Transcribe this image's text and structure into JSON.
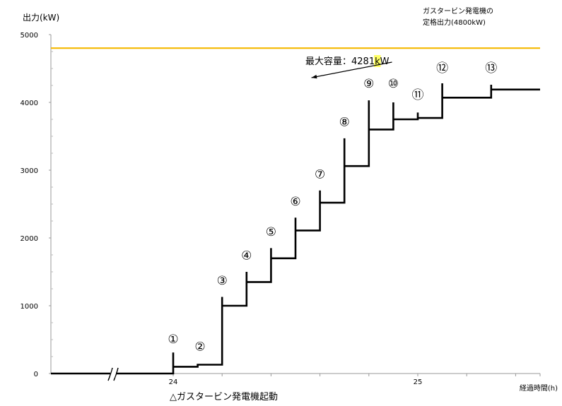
{
  "chart_data": {
    "type": "line",
    "ylabel": "出力(kW)",
    "xlabel": "経過時間(h)",
    "ylim": [
      0,
      5000
    ],
    "yticks": [
      "0",
      "1000",
      "2000",
      "3000",
      "4000",
      "5000"
    ],
    "xticks": [
      {
        "label": "24",
        "value": 24.0
      },
      {
        "label": "25",
        "value": 25.0
      }
    ],
    "axis_break": true,
    "reference_line": {
      "value": 4800,
      "color": "#f5b800",
      "label_line1": "ガスタービン発電機の",
      "label_line2": "定格出力(4800kW)"
    },
    "annotation": {
      "prefix": "最大容量：4281",
      "highlight": "k",
      "suffix": "W",
      "highlight_color": "#ffff66",
      "target_x": 25.2,
      "target_y": 4281
    },
    "start_label": "△ガスタービン発電機起動",
    "series": [
      {
        "color": "#000000",
        "points": [
          [
            22.99,
            0
          ],
          [
            24.0,
            0
          ],
          [
            24.0,
            310
          ],
          [
            24.0,
            100
          ],
          [
            24.2,
            100
          ],
          [
            24.2,
            130
          ],
          [
            24.4,
            130
          ],
          [
            24.4,
            1130
          ],
          [
            24.4,
            1000
          ],
          [
            24.6,
            1000
          ],
          [
            24.6,
            1500
          ],
          [
            24.6,
            1350
          ],
          [
            24.8,
            1350
          ],
          [
            24.8,
            1850
          ],
          [
            24.8,
            1700
          ],
          [
            25.0,
            1700
          ],
          [
            25.0,
            2300
          ],
          [
            25.0,
            2110
          ],
          [
            25.2,
            2110
          ],
          [
            25.2,
            2700
          ],
          [
            25.2,
            2520
          ],
          [
            25.4,
            2520
          ],
          [
            25.4,
            3470
          ],
          [
            25.4,
            3060
          ],
          [
            25.6,
            3060
          ],
          [
            25.6,
            4030
          ],
          [
            25.6,
            3600
          ],
          [
            25.8,
            3600
          ],
          [
            25.8,
            4000
          ],
          [
            25.8,
            3750
          ],
          [
            26.0,
            3750
          ],
          [
            26.0,
            3850
          ],
          [
            26.0,
            3770
          ],
          [
            26.2,
            3770
          ],
          [
            26.2,
            4281
          ],
          [
            26.2,
            4070
          ],
          [
            26.6,
            4070
          ],
          [
            26.6,
            4260
          ],
          [
            26.6,
            4190
          ],
          [
            27.0,
            4190
          ]
        ]
      }
    ],
    "step_labels": [
      {
        "text": "①",
        "x": 24.0,
        "y": 450
      },
      {
        "text": "②",
        "x": 24.22,
        "y": 340
      },
      {
        "text": "③",
        "x": 24.4,
        "y": 1310
      },
      {
        "text": "④",
        "x": 24.6,
        "y": 1680
      },
      {
        "text": "⑤",
        "x": 24.8,
        "y": 2030
      },
      {
        "text": "⑥",
        "x": 25.0,
        "y": 2480
      },
      {
        "text": "⑦",
        "x": 25.2,
        "y": 2880
      },
      {
        "text": "⑧",
        "x": 25.4,
        "y": 3650
      },
      {
        "text": "⑨",
        "x": 25.6,
        "y": 4220
      },
      {
        "text": "⑩",
        "x": 25.8,
        "y": 4220
      },
      {
        "text": "⑪",
        "x": 26.0,
        "y": 4050
      },
      {
        "text": "⑫",
        "x": 26.2,
        "y": 4450
      },
      {
        "text": "⑬",
        "x": 26.6,
        "y": 4450
      }
    ]
  }
}
